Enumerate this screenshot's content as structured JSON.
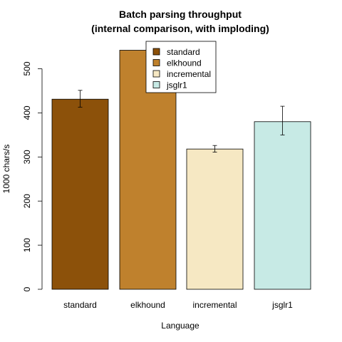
{
  "chart_data": {
    "type": "bar",
    "title": "Batch parsing throughput",
    "subtitle": "(internal comparison, with imploding)",
    "xlabel": "Language",
    "ylabel": "1000 chars/s",
    "categories": [
      "standard",
      "elkhound",
      "incremental",
      "jsglr1"
    ],
    "values": [
      431,
      542,
      318,
      380
    ],
    "error_low": [
      413,
      528,
      311,
      350
    ],
    "error_high": [
      451,
      557,
      326,
      415
    ],
    "colors": [
      "#8C510A",
      "#BF812D",
      "#F6E8C3",
      "#C7EAE5"
    ],
    "ylim": [
      0,
      550
    ],
    "yticks": [
      0,
      100,
      200,
      300,
      400,
      500
    ],
    "grid": false,
    "legend": {
      "placement": "top-right",
      "entries": [
        "standard",
        "elkhound",
        "incremental",
        "jsglr1"
      ]
    }
  }
}
